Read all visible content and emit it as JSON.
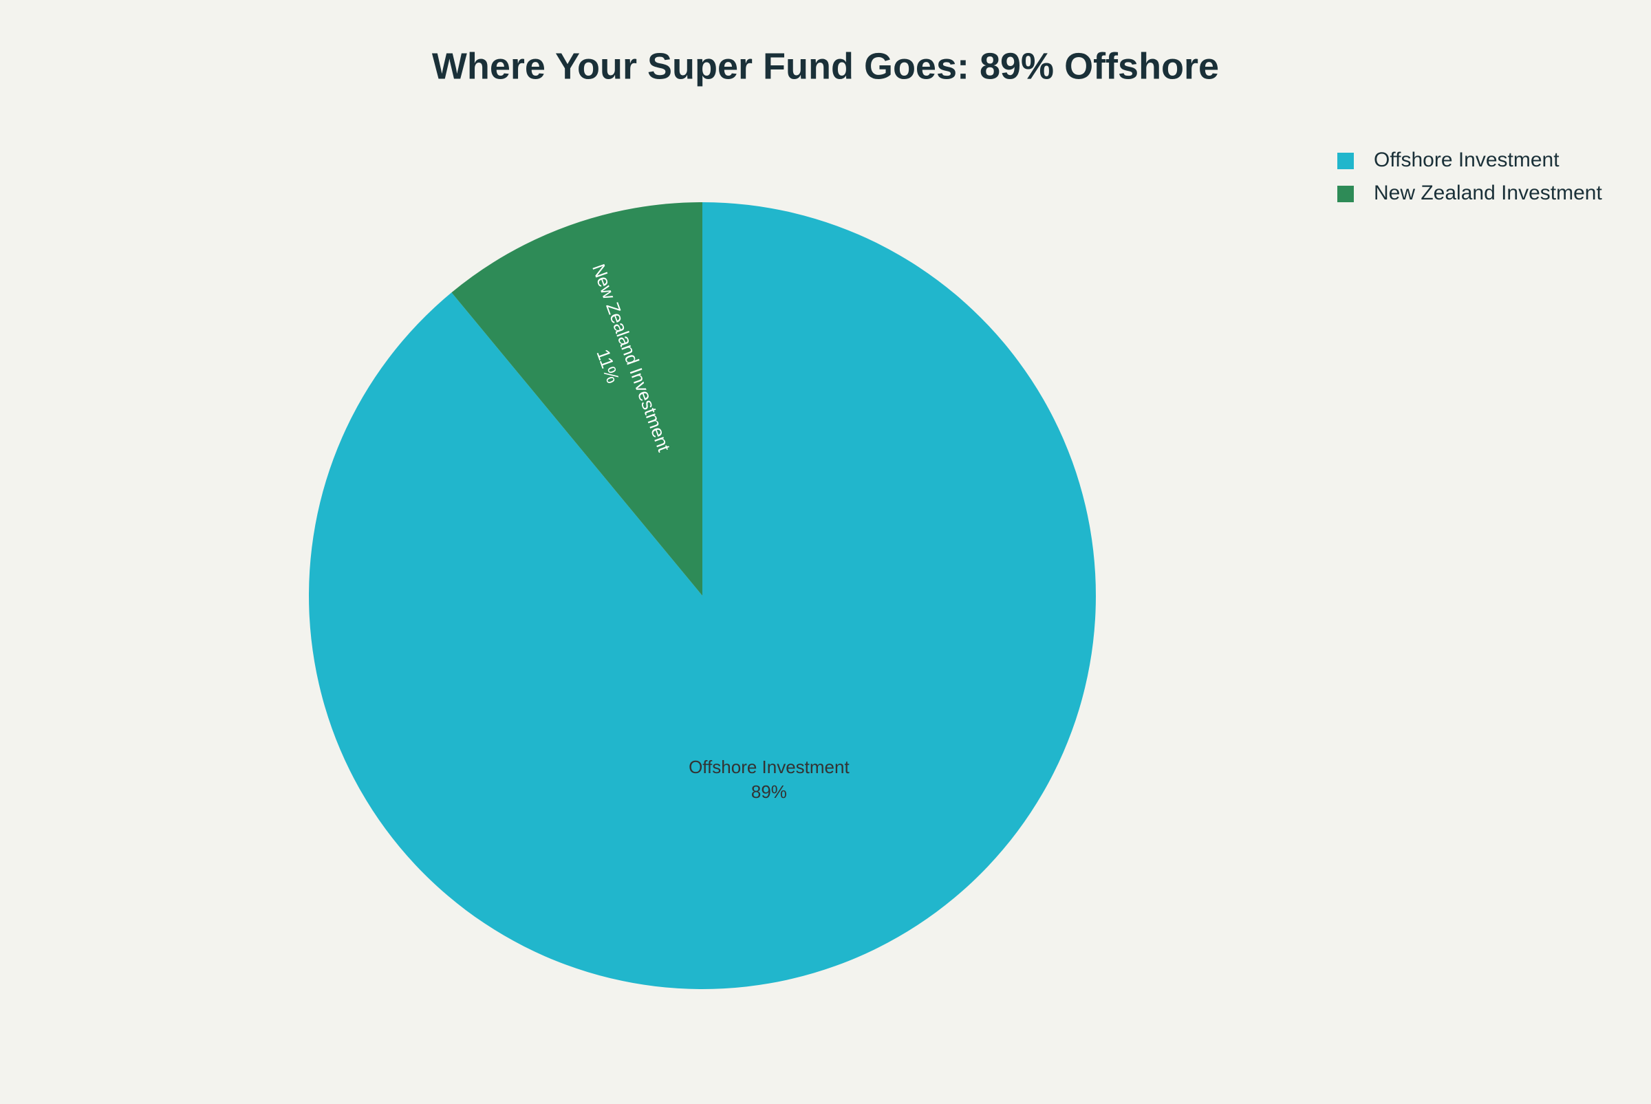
{
  "chart_data": {
    "type": "pie",
    "title": "Where Your Super Fund Goes: 89% Offshore",
    "categories": [
      "Offshore Investment",
      "New Zealand Investment"
    ],
    "values": [
      89,
      11
    ],
    "value_labels": [
      "89%",
      "11%"
    ],
    "colors": [
      "#21b6cc",
      "#2e8b57"
    ],
    "legend": "top-right"
  }
}
